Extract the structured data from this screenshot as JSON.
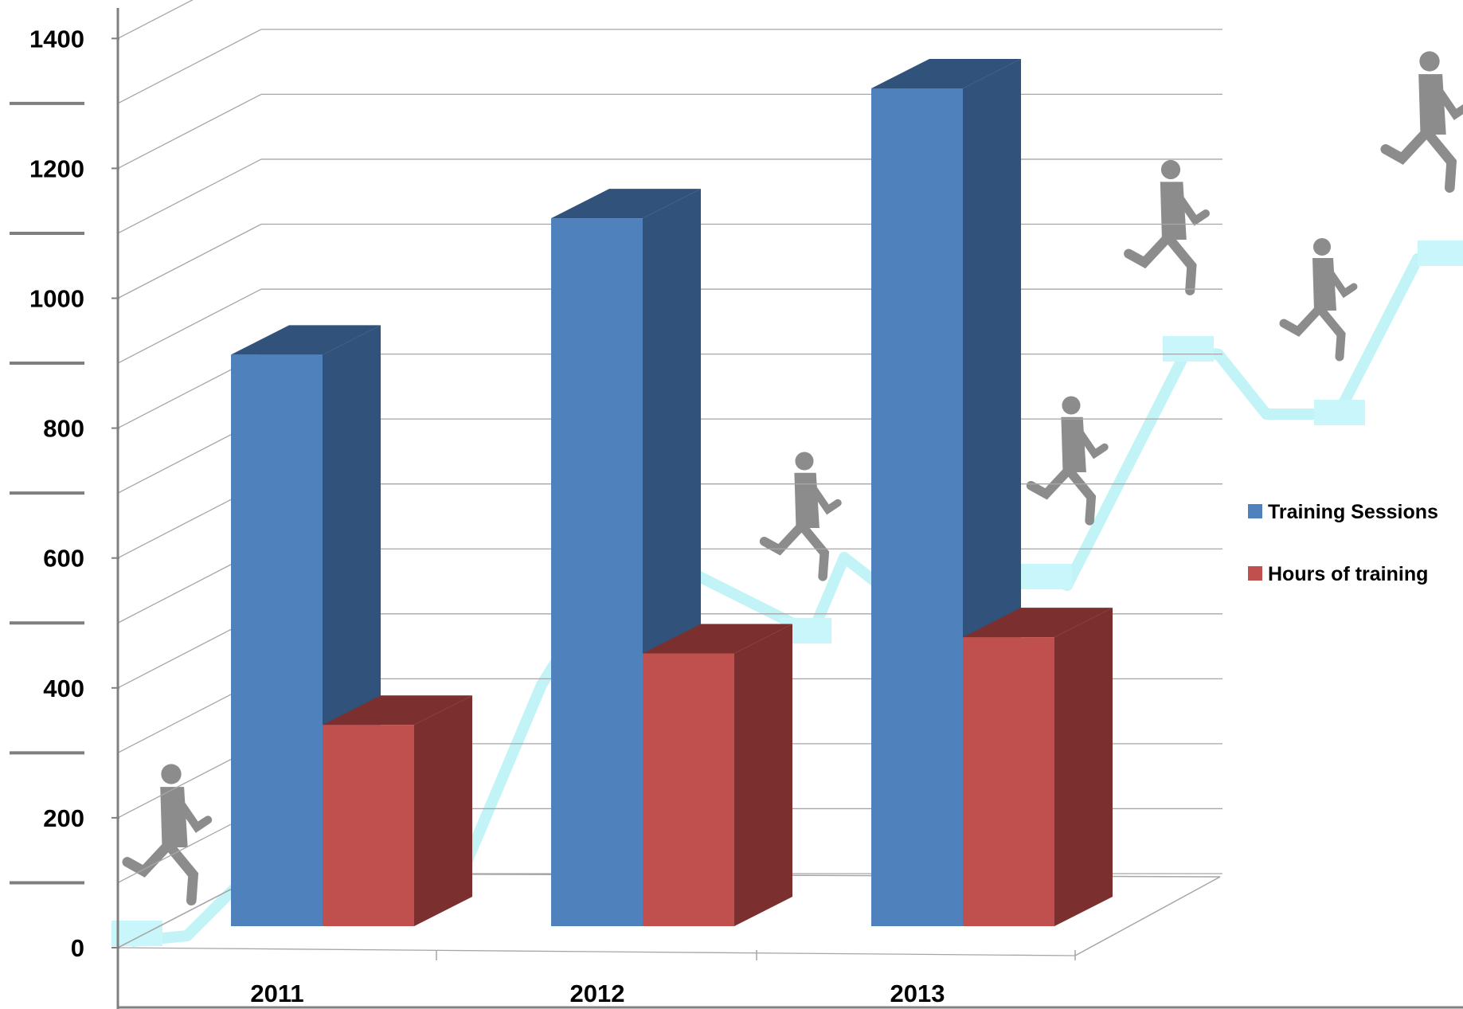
{
  "chart_data": {
    "type": "bar",
    "categories": [
      "2011",
      "2012",
      "2013"
    ],
    "series": [
      {
        "name": "Training Sessions",
        "values": [
          890,
          1100,
          1300
        ],
        "color": "#4F81BD",
        "side_color": "#31527B"
      },
      {
        "name": "Hours of training",
        "values": [
          320,
          430,
          455
        ],
        "color": "#C0504D",
        "side_color": "#7B2F2E"
      }
    ],
    "yticks": [
      0,
      200,
      400,
      600,
      800,
      1000,
      1200,
      1400
    ],
    "ylim": [
      0,
      1500
    ],
    "grid": true,
    "legend_position": "right",
    "decoration": "staircase of running businessmen silhouettes along a cyan zig-zag line"
  }
}
